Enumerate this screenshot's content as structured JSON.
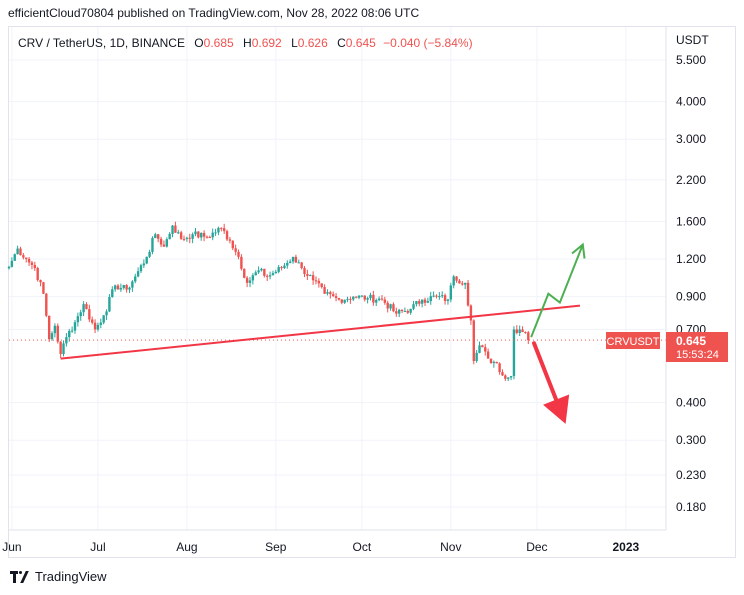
{
  "header": {
    "published": "efficientCloud70804 published on TradingView.com, Nov 28, 2022 08:06 UTC"
  },
  "legend": {
    "symbol": "CRV / TetherUS, 1D, BINANCE",
    "o_label": "O",
    "o_value": "0.685",
    "h_label": "H",
    "h_value": "0.692",
    "l_label": "L",
    "l_value": "0.626",
    "c_label": "C",
    "c_value": "0.645",
    "change": "−0.040 (−5.84%)"
  },
  "footer": {
    "brand": "TradingView"
  },
  "colors": {
    "up": "#26a69a",
    "down": "#ef5350",
    "trendline": "#f23645",
    "bull_arrow": "#4caf50",
    "bear_arrow": "#f23645",
    "price_label_bg": "#ef5350"
  },
  "chart_data": {
    "type": "candlestick",
    "currency_label": "USDT",
    "y_scale": "log",
    "ylim": [
      0.16,
      6.0
    ],
    "y_ticks": [
      "5.500",
      "4.000",
      "3.000",
      "2.200",
      "1.600",
      "1.200",
      "0.900",
      "0.700",
      "0.400",
      "0.300",
      "0.230",
      "0.180"
    ],
    "x_ticks": [
      "Jun",
      "Jul",
      "Aug",
      "Sep",
      "Oct",
      "Nov",
      "Dec",
      "2023"
    ],
    "x_tick_dates": [
      "2022-06-01",
      "2022-07-01",
      "2022-08-01",
      "2022-09-01",
      "2022-10-01",
      "2022-11-01",
      "2022-12-01",
      "2023-01-01"
    ],
    "xlim": [
      "2022-05-31",
      "2023-01-15"
    ],
    "last_price": {
      "symbol": "CRVUSDT",
      "price": "0.645",
      "countdown": "15:53:24"
    },
    "anchors": [
      {
        "date": "2022-05-31",
        "close": 1.13
      },
      {
        "date": "2022-06-03",
        "close": 1.3
      },
      {
        "date": "2022-06-06",
        "close": 1.2
      },
      {
        "date": "2022-06-09",
        "close": 1.12
      },
      {
        "date": "2022-06-12",
        "close": 0.92
      },
      {
        "date": "2022-06-14",
        "close": 0.65
      },
      {
        "date": "2022-06-16",
        "close": 0.72
      },
      {
        "date": "2022-06-18",
        "close": 0.58
      },
      {
        "date": "2022-06-20",
        "close": 0.66
      },
      {
        "date": "2022-06-23",
        "close": 0.74
      },
      {
        "date": "2022-06-26",
        "close": 0.85
      },
      {
        "date": "2022-06-30",
        "close": 0.7
      },
      {
        "date": "2022-07-03",
        "close": 0.78
      },
      {
        "date": "2022-07-07",
        "close": 0.98
      },
      {
        "date": "2022-07-11",
        "close": 0.95
      },
      {
        "date": "2022-07-14",
        "close": 1.05
      },
      {
        "date": "2022-07-18",
        "close": 1.22
      },
      {
        "date": "2022-07-21",
        "close": 1.45
      },
      {
        "date": "2022-07-24",
        "close": 1.32
      },
      {
        "date": "2022-07-27",
        "close": 1.55
      },
      {
        "date": "2022-07-30",
        "close": 1.4
      },
      {
        "date": "2022-08-03",
        "close": 1.45
      },
      {
        "date": "2022-08-08",
        "close": 1.42
      },
      {
        "date": "2022-08-13",
        "close": 1.52
      },
      {
        "date": "2022-08-16",
        "close": 1.38
      },
      {
        "date": "2022-08-19",
        "close": 1.22
      },
      {
        "date": "2022-08-22",
        "close": 1.0
      },
      {
        "date": "2022-08-26",
        "close": 1.1
      },
      {
        "date": "2022-08-29",
        "close": 1.05
      },
      {
        "date": "2022-09-03",
        "close": 1.12
      },
      {
        "date": "2022-09-07",
        "close": 1.22
      },
      {
        "date": "2022-09-10",
        "close": 1.12
      },
      {
        "date": "2022-09-14",
        "close": 1.02
      },
      {
        "date": "2022-09-18",
        "close": 0.92
      },
      {
        "date": "2022-09-23",
        "close": 0.88
      },
      {
        "date": "2022-09-28",
        "close": 0.9
      },
      {
        "date": "2022-10-03",
        "close": 0.89
      },
      {
        "date": "2022-10-08",
        "close": 0.88
      },
      {
        "date": "2022-10-13",
        "close": 0.79
      },
      {
        "date": "2022-10-18",
        "close": 0.82
      },
      {
        "date": "2022-10-22",
        "close": 0.88
      },
      {
        "date": "2022-10-27",
        "close": 0.9
      },
      {
        "date": "2022-10-31",
        "close": 0.88
      },
      {
        "date": "2022-11-02",
        "close": 1.05
      },
      {
        "date": "2022-11-06",
        "close": 1.0
      },
      {
        "date": "2022-11-08",
        "close": 0.75
      },
      {
        "date": "2022-11-09",
        "close": 0.55
      },
      {
        "date": "2022-11-11",
        "close": 0.62
      },
      {
        "date": "2022-11-14",
        "close": 0.56
      },
      {
        "date": "2022-11-17",
        "close": 0.54
      },
      {
        "date": "2022-11-20",
        "close": 0.48
      },
      {
        "date": "2022-11-22",
        "close": 0.49
      },
      {
        "date": "2022-11-23",
        "close": 0.7
      },
      {
        "date": "2022-11-25",
        "close": 0.7
      },
      {
        "date": "2022-11-27",
        "close": 0.685
      },
      {
        "date": "2022-11-28",
        "close": 0.645
      }
    ],
    "last_candle": {
      "date": "2022-11-28",
      "open": 0.685,
      "high": 0.692,
      "low": 0.626,
      "close": 0.645
    },
    "drawings": {
      "trendline": {
        "from": {
          "date": "2022-06-18",
          "price": 0.56
        },
        "to": {
          "date": "2022-12-16",
          "price": 0.84
        }
      },
      "bull_arrow": [
        {
          "date": "2022-11-29",
          "price": 0.66
        },
        {
          "date": "2022-12-05",
          "price": 0.92
        },
        {
          "date": "2022-12-09",
          "price": 0.86
        },
        {
          "date": "2022-12-17",
          "price": 1.34
        }
      ],
      "bear_arrow": [
        {
          "date": "2022-11-30",
          "price": 0.63
        },
        {
          "date": "2022-12-11",
          "price": 0.34
        }
      ]
    }
  }
}
